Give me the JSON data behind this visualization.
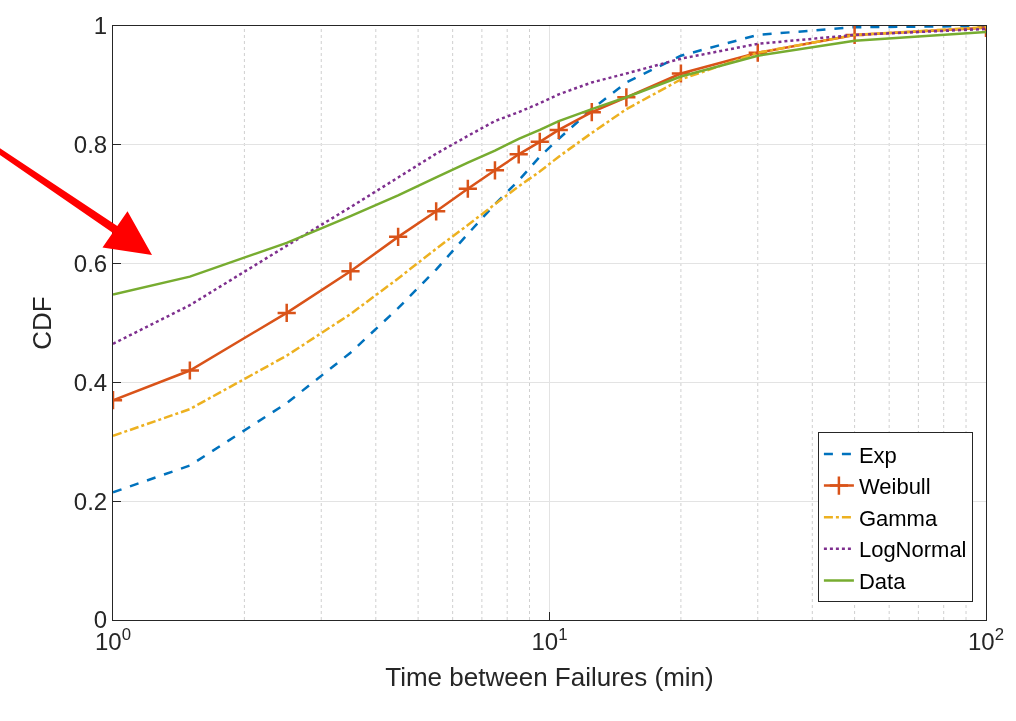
{
  "chart_data": {
    "type": "line",
    "xlabel": "Time between Failures (min)",
    "ylabel": "CDF",
    "log": "x",
    "xlim": [
      1,
      100
    ],
    "xticks": [
      {
        "value": 1,
        "label": "10$^{0}$"
      },
      {
        "value": 10,
        "label": "10$^{1}$"
      },
      {
        "value": 100,
        "label": "10$^{2}$"
      }
    ],
    "ylim": [
      0,
      1
    ],
    "yticks": [
      0,
      0.2,
      0.4,
      0.6,
      0.8,
      1
    ],
    "grid": true,
    "legend": "bottom right",
    "x": [
      1,
      1.5,
      2.5,
      3.5,
      4.5,
      5.5,
      6.5,
      7.5,
      8.5,
      9.5,
      10.5,
      12.5,
      15,
      20,
      30,
      50,
      100
    ],
    "series": [
      {
        "name": "Exp",
        "color": "#0072bd",
        "line_style": "dashed",
        "marker": "none",
        "values": [
          0.215,
          0.26,
          0.365,
          0.45,
          0.525,
          0.59,
          0.65,
          0.7,
          0.74,
          0.78,
          0.81,
          0.86,
          0.905,
          0.95,
          0.985,
          0.998,
          1
        ]
      },
      {
        "name": "Weibull",
        "color": "#d95319",
        "line_style": "solid",
        "marker": "cross",
        "values": [
          0.37,
          0.42,
          0.517,
          0.587,
          0.645,
          0.688,
          0.726,
          0.757,
          0.784,
          0.805,
          0.825,
          0.855,
          0.88,
          0.92,
          0.955,
          0.985,
          0.997
        ]
      },
      {
        "name": "Gamma",
        "color": "#edb120",
        "line_style": "dashdot",
        "marker": "none",
        "values": [
          0.31,
          0.355,
          0.445,
          0.515,
          0.575,
          0.625,
          0.665,
          0.7,
          0.73,
          0.755,
          0.78,
          0.82,
          0.86,
          0.91,
          0.955,
          0.985,
          0.998
        ]
      },
      {
        "name": "LogNormal",
        "color": "#7e2f8e",
        "line_style": "dotted",
        "marker": "none",
        "values": [
          0.465,
          0.53,
          0.63,
          0.695,
          0.745,
          0.785,
          0.815,
          0.84,
          0.855,
          0.87,
          0.885,
          0.905,
          0.92,
          0.945,
          0.97,
          0.985,
          0.995
        ]
      },
      {
        "name": "Data",
        "color": "#77ac30",
        "line_style": "solid",
        "marker": "none",
        "values": [
          0.548,
          0.578,
          0.635,
          0.68,
          0.715,
          0.745,
          0.77,
          0.79,
          0.81,
          0.825,
          0.84,
          0.86,
          0.88,
          0.915,
          0.95,
          0.975,
          0.99
        ]
      }
    ]
  }
}
